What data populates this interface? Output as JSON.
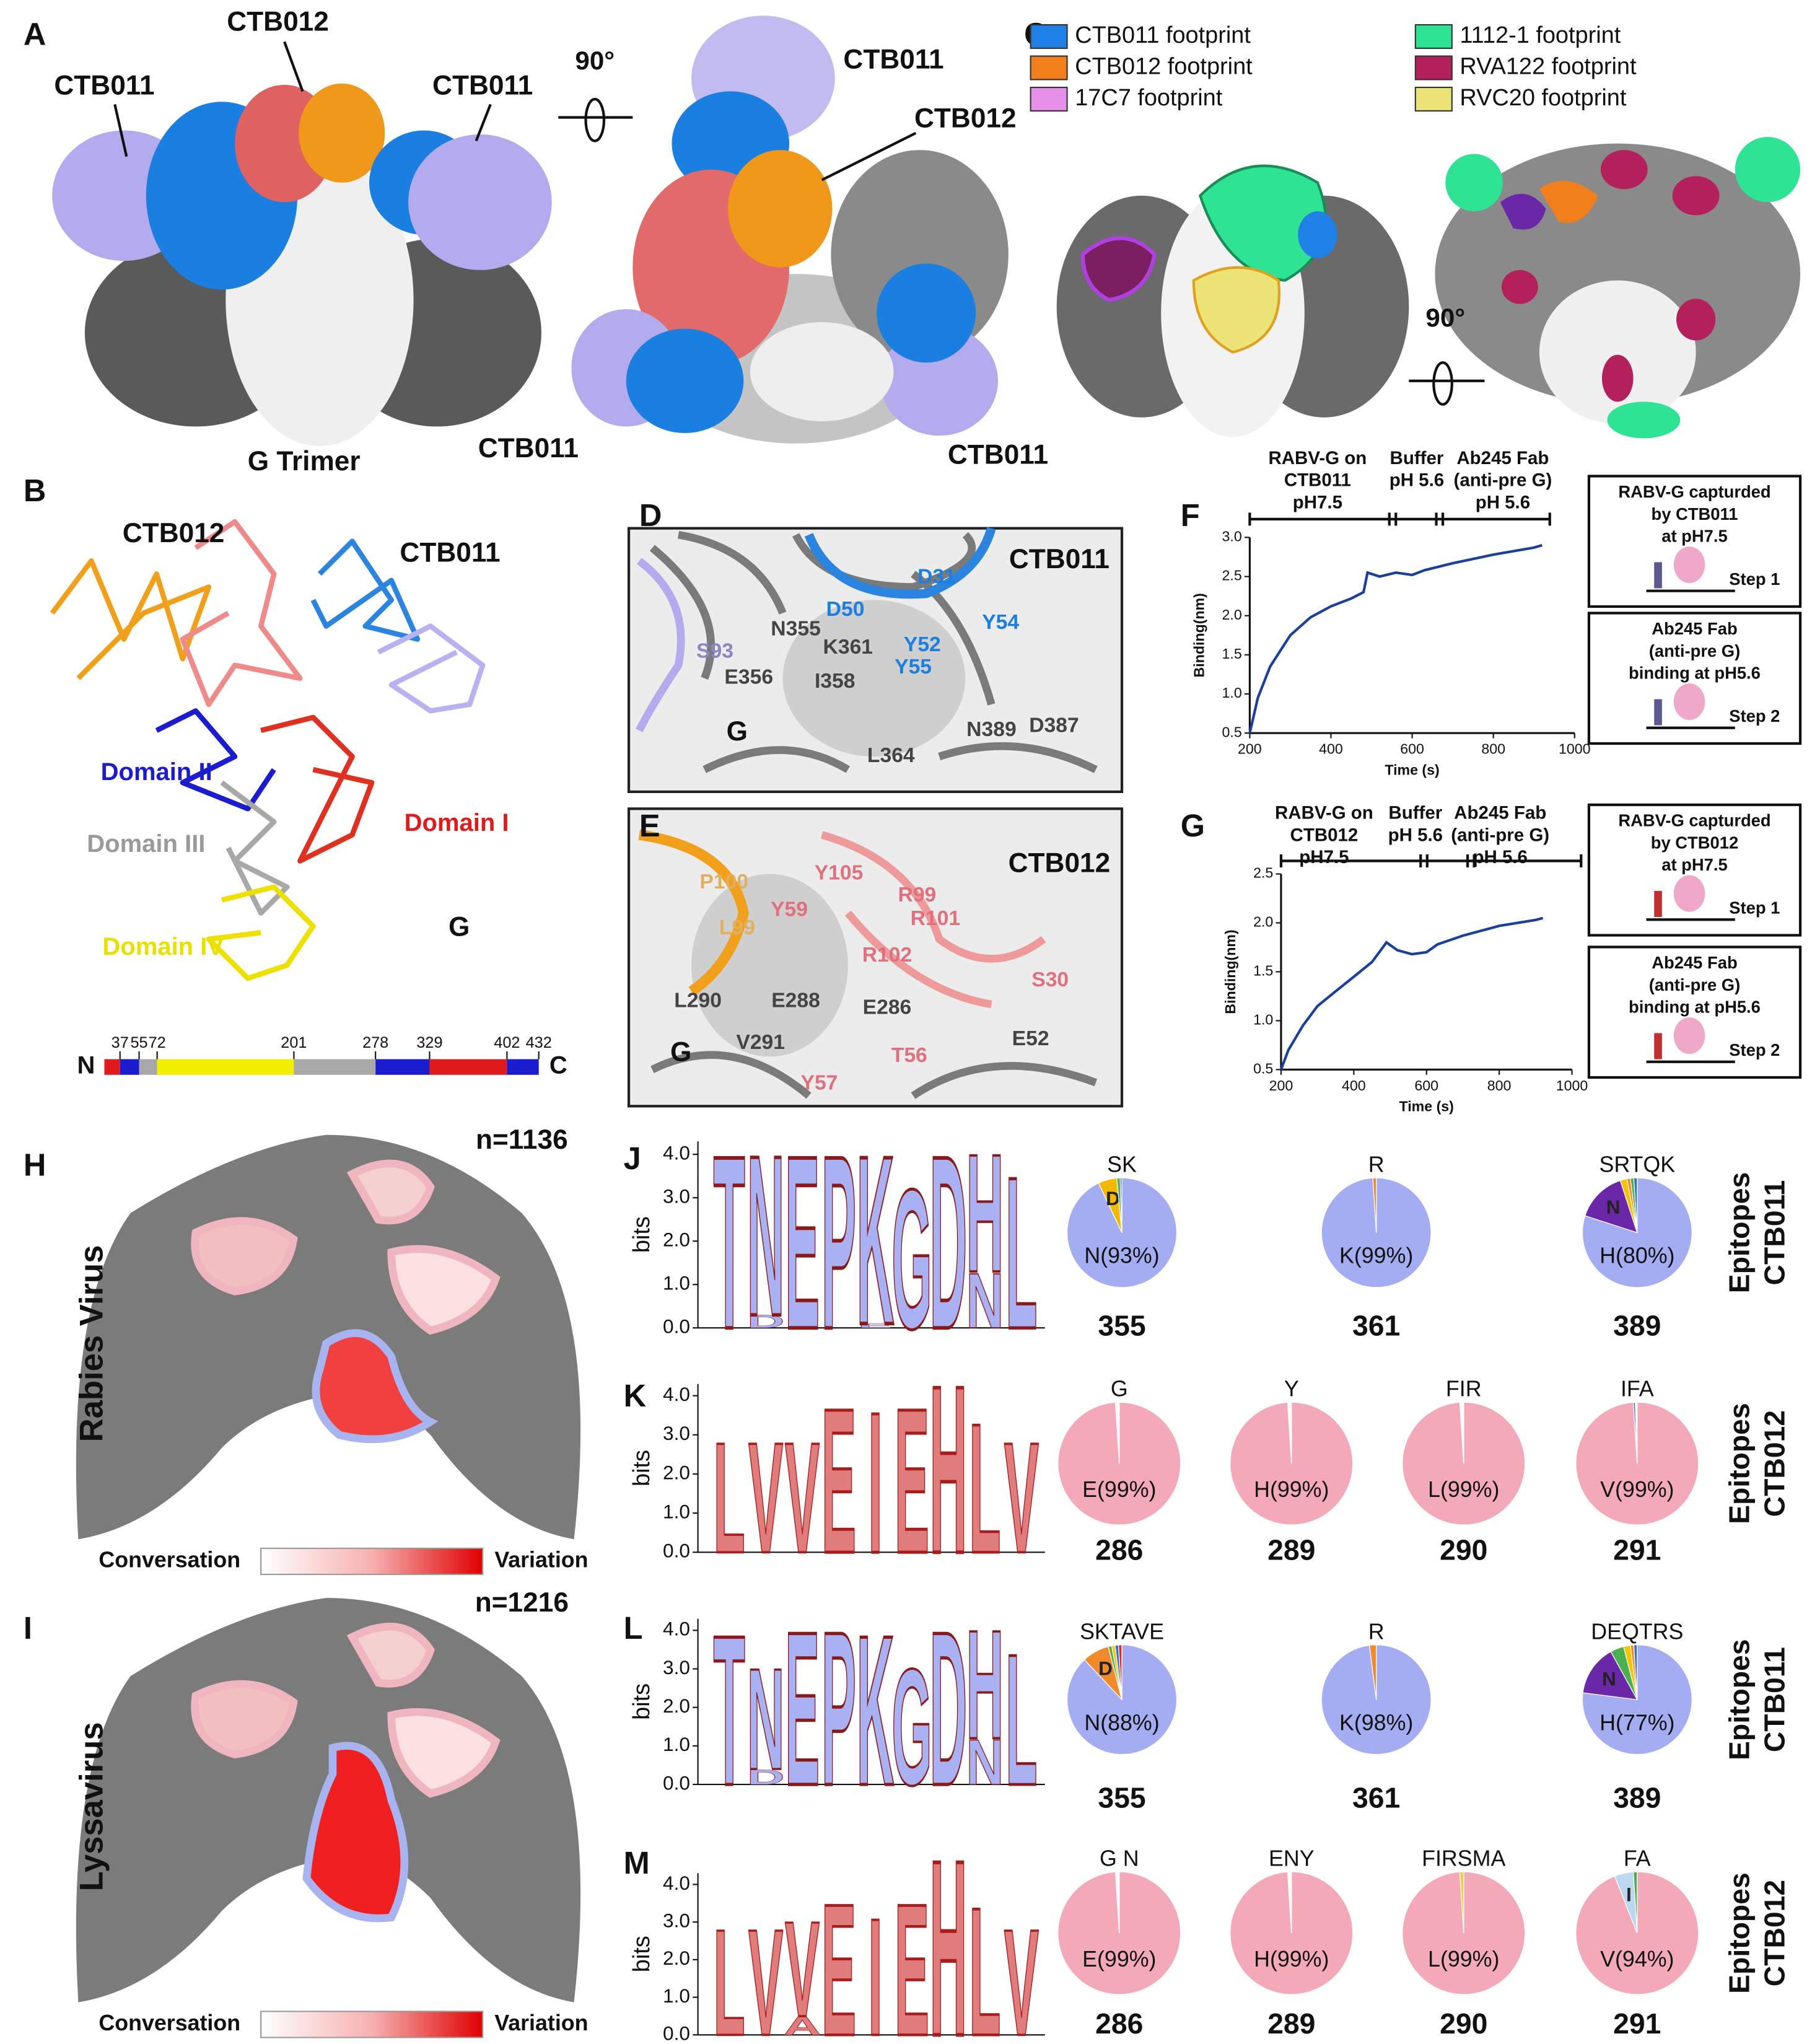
{
  "panel_labels": [
    "A",
    "B",
    "C",
    "D",
    "E",
    "F",
    "G",
    "H",
    "I",
    "J",
    "K",
    "L",
    "M"
  ],
  "panel_a": {
    "top_labels": [
      "CTB011",
      "CTB012",
      "CTB011"
    ],
    "rotation": "90°",
    "view2_labels": [
      "CTB011",
      "CTB012"
    ],
    "bottom_labels": [
      "G Trimer",
      "CTB011",
      "CTB011"
    ]
  },
  "panel_b": {
    "chains": [
      "CTB012",
      "CTB011"
    ],
    "domains": [
      "Domain II",
      "Domain III",
      "Domain I",
      "Domain IV"
    ],
    "protein": "G",
    "domain_map": {
      "start": "N",
      "end": "C",
      "boundaries": [
        37,
        55,
        72,
        201,
        278,
        329,
        402,
        432
      ],
      "colors": [
        "#e01b1b",
        "#1b1bd0",
        "#a8a8a8",
        "#f2ee00",
        "#a8a8a8",
        "#1b1bd0",
        "#e01b1b",
        "#1b1bd0"
      ]
    }
  },
  "panel_c": {
    "legend": [
      {
        "name": "CTB011 footprint",
        "color": "#1f80e6"
      },
      {
        "name": "CTB012 footprint",
        "color": "#f07f1c"
      },
      {
        "name": "17C7 footprint",
        "color": "#e690ea"
      },
      {
        "name": "1112-1 footprint",
        "color": "#2fe394"
      },
      {
        "name": "RVA122 footprint",
        "color": "#b3205c"
      },
      {
        "name": "RVC20 footprint",
        "color": "#ece477"
      }
    ],
    "rotation": "90°"
  },
  "panel_d": {
    "antibody": "CTB011",
    "protein": "G",
    "residues": [
      "D31",
      "D50",
      "Y52",
      "Y54",
      "N355",
      "K361",
      "Y55",
      "S93",
      "E356",
      "I358",
      "N389",
      "D387",
      "L364"
    ]
  },
  "panel_e": {
    "antibody": "CTB012",
    "protein": "G",
    "residues": [
      "P100",
      "Y105",
      "Y59",
      "R99",
      "L99",
      "R101",
      "R102",
      "S30",
      "L290",
      "E288",
      "E286",
      "V291",
      "T56",
      "E52",
      "Y57"
    ]
  },
  "panel_f": {
    "phases": [
      [
        "RABV-G on",
        "CTB011",
        "pH7.5"
      ],
      [
        "Buffer",
        "pH 5.6"
      ],
      [
        "Ab245 Fab",
        "(anti-pre G)",
        "pH 5.6"
      ]
    ],
    "chart": {
      "type": "line",
      "x_label": "Time (s)",
      "y_label": "Binding(nm)",
      "color": "#1b3f9c",
      "xlim": [
        200,
        1000
      ],
      "xticks": [
        200,
        400,
        600,
        800,
        1000
      ],
      "ylim": [
        0.5,
        3.0
      ],
      "yticks": [
        0.5,
        {
          "value": 1,
          "label": "1.0"
        },
        1.5,
        {
          "value": 2,
          "label": "2.0"
        },
        2.5,
        {
          "value": 3,
          "label": "3.0"
        }
      ],
      "x": [
        200,
        220,
        250,
        300,
        350,
        400,
        450,
        480,
        490,
        520,
        560,
        600,
        630,
        700,
        800,
        900,
        920
      ],
      "values": [
        0.5,
        0.95,
        1.35,
        1.75,
        1.98,
        2.12,
        2.22,
        2.3,
        2.55,
        2.5,
        2.55,
        2.52,
        2.58,
        2.67,
        2.78,
        2.87,
        2.9
      ]
    },
    "steps": [
      {
        "lines": [
          "RABV-G capturded",
          "by CTB011",
          "at pH7.5"
        ],
        "step": "Step 1"
      },
      {
        "lines": [
          "Ab245 Fab",
          "(anti-pre G)",
          "binding at pH5.6"
        ],
        "step": "Step 2"
      }
    ]
  },
  "panel_g": {
    "phases": [
      [
        "RABV-G on",
        "CTB012",
        "pH7.5"
      ],
      [
        "Buffer",
        "pH 5.6"
      ],
      [
        "Ab245 Fab",
        "(anti-pre G)",
        "pH 5.6"
      ]
    ],
    "chart": {
      "type": "line",
      "x_label": "Time (s)",
      "y_label": "Binding(nm)",
      "color": "#1b3f9c",
      "xlim": [
        200,
        1000
      ],
      "xticks": [
        200,
        400,
        600,
        800,
        1000
      ],
      "ylim": [
        0.5,
        2.5
      ],
      "yticks": [
        0.5,
        {
          "value": 1,
          "label": "1.0"
        },
        1.5,
        {
          "value": 2,
          "label": "2.0"
        },
        2.5
      ],
      "x": [
        200,
        220,
        260,
        300,
        350,
        400,
        450,
        480,
        490,
        520,
        560,
        600,
        630,
        700,
        800,
        900,
        920
      ],
      "values": [
        0.5,
        0.7,
        0.95,
        1.15,
        1.3,
        1.45,
        1.6,
        1.75,
        1.8,
        1.72,
        1.68,
        1.7,
        1.78,
        1.87,
        1.97,
        2.03,
        2.05
      ]
    },
    "steps": [
      {
        "lines": [
          "RABV-G capturded",
          "by CTB012",
          "at pH7.5"
        ],
        "step": "Step 1"
      },
      {
        "lines": [
          "Ab245 Fab",
          "(anti-pre G)",
          "binding at pH5.6"
        ],
        "step": "Step 2"
      }
    ]
  },
  "panel_h": {
    "count": "n=1136",
    "title": "Rabies Virus",
    "scale_low": "Conversation",
    "scale_high": "Variation"
  },
  "panel_i": {
    "count": "n=1216",
    "title": "Lyssavirus",
    "scale_low": "Conversation",
    "scale_high": "Variation"
  },
  "logos": [
    {
      "y_label": "bits",
      "ylim": [
        0,
        4.3
      ],
      "yticks": [
        {
          "value": 0,
          "label": "0.0"
        },
        {
          "value": 1,
          "label": "1.0"
        },
        {
          "value": 2,
          "label": "2.0"
        },
        {
          "value": 3,
          "label": "3.0"
        },
        {
          "value": 4,
          "label": "4.0"
        }
      ],
      "color": "#a9b1f2",
      "stroke": "#8a1a1a",
      "columns": [
        [
          {
            "letter": "T",
            "height": 4.1
          }
        ],
        [
          {
            "letter": "D",
            "height": 0.3
          },
          {
            "letter": "N",
            "height": 3.8
          }
        ],
        [
          {
            "letter": "E",
            "height": 4.1
          }
        ],
        [
          {
            "letter": "P",
            "height": 4.1
          }
        ],
        [
          {
            "letter": "E",
            "height": 0.1
          },
          {
            "letter": "K",
            "height": 4.0
          }
        ],
        [
          {
            "letter": "G",
            "height": 3.3
          }
        ],
        [
          {
            "letter": "D",
            "height": 4.1
          }
        ],
        [
          {
            "letter": "N",
            "height": 1.3
          },
          {
            "letter": "H",
            "height": 2.8
          }
        ],
        [
          {
            "letter": "L",
            "height": 3.6
          }
        ]
      ]
    },
    {
      "y_label": "bits",
      "ylim": [
        0,
        4.3
      ],
      "yticks": [
        {
          "value": 0,
          "label": "0.0"
        },
        {
          "value": 1,
          "label": "1.0"
        },
        {
          "value": 2,
          "label": "2.0"
        },
        {
          "value": 3,
          "label": "3.0"
        },
        {
          "value": 4,
          "label": "4.0"
        }
      ],
      "color": "#e07c7c",
      "stroke": "#a81c1c",
      "columns": [
        [
          {
            "letter": "L",
            "height": 2.9
          }
        ],
        [
          {
            "letter": "V",
            "height": 2.9
          }
        ],
        [
          {
            "letter": "V",
            "height": 2.9
          }
        ],
        [
          {
            "letter": "E",
            "height": 3.8
          }
        ],
        [
          {
            "letter": "I",
            "height": 3.7
          }
        ],
        [
          {
            "letter": "E",
            "height": 3.8
          }
        ],
        [
          {
            "letter": "H",
            "height": 4.4
          }
        ],
        [
          {
            "letter": "L",
            "height": 3.4
          }
        ],
        [
          {
            "letter": "V",
            "height": 2.9
          }
        ]
      ]
    },
    {
      "y_label": "bits",
      "ylim": [
        0,
        4.3
      ],
      "yticks": [
        {
          "value": 0,
          "label": "0.0"
        },
        {
          "value": 1,
          "label": "1.0"
        },
        {
          "value": 2,
          "label": "2.0"
        },
        {
          "value": 3,
          "label": "3.0"
        },
        {
          "value": 4,
          "label": "4.0"
        }
      ],
      "color": "#a9b1f2",
      "stroke": "#8a1a1a",
      "columns": [
        [
          {
            "letter": "T",
            "height": 4.0
          }
        ],
        [
          {
            "letter": "D",
            "height": 0.4
          },
          {
            "letter": "N",
            "height": 2.7
          }
        ],
        [
          {
            "letter": "E",
            "height": 4.1
          }
        ],
        [
          {
            "letter": "P",
            "height": 4.1
          }
        ],
        [
          {
            "letter": "K",
            "height": 4.0
          }
        ],
        [
          {
            "letter": "G",
            "height": 3.1
          }
        ],
        [
          {
            "letter": "D",
            "height": 4.1
          }
        ],
        [
          {
            "letter": "N",
            "height": 1.2
          },
          {
            "letter": "H",
            "height": 2.9
          }
        ],
        [
          {
            "letter": "L",
            "height": 3.5
          }
        ]
      ]
    },
    {
      "y_label": "bits",
      "ylim": [
        0,
        4.3
      ],
      "yticks": [
        {
          "value": 0,
          "label": "0.0"
        },
        {
          "value": 1,
          "label": "1.0"
        },
        {
          "value": 2,
          "label": "2.0"
        },
        {
          "value": 3,
          "label": "3.0"
        },
        {
          "value": 4,
          "label": "4.0"
        }
      ],
      "color": "#e07c7c",
      "stroke": "#a81c1c",
      "columns": [
        [
          {
            "letter": "L",
            "height": 2.9
          }
        ],
        [
          {
            "letter": "V",
            "height": 2.9
          }
        ],
        [
          {
            "letter": "A",
            "height": 0.5
          },
          {
            "letter": "V",
            "height": 2.6
          }
        ],
        [
          {
            "letter": "E",
            "height": 3.6
          }
        ],
        [
          {
            "letter": "I",
            "height": 3.2
          }
        ],
        [
          {
            "letter": "E",
            "height": 3.6
          }
        ],
        [
          {
            "letter": "H",
            "height": 4.8
          }
        ],
        [
          {
            "letter": "L",
            "height": 3.5
          }
        ],
        [
          {
            "letter": "V",
            "height": 2.9
          }
        ]
      ]
    }
  ],
  "pie_rows": [
    {
      "group": [
        "CTB011",
        "Epitopes"
      ],
      "pies": [
        {
          "position": "355",
          "main": {
            "label": "N(93%)",
            "value": 93,
            "color": "#a4acf2"
          },
          "others": [
            {
              "label": "D",
              "value": 5.5,
              "color": "#f5b800"
            },
            {
              "value": 1,
              "color": "#4caf50"
            },
            {
              "value": 0.5,
              "color": "#3070d0"
            }
          ],
          "outer_label": "SK"
        },
        {
          "position": "361",
          "main": {
            "label": "K(99%)",
            "value": 99,
            "color": "#a4acf2"
          },
          "others": [
            {
              "value": 1,
              "color": "#f08a2a"
            }
          ],
          "outer_label": "R"
        },
        {
          "position": "389",
          "main": {
            "label": "H(80%)",
            "value": 80,
            "color": "#a4acf2"
          },
          "others": [
            {
              "label": "N",
              "value": 15,
              "color": "#6a28a8"
            },
            {
              "value": 2,
              "color": "#f5c400"
            },
            {
              "value": 1,
              "color": "#f08a2a"
            },
            {
              "value": 1,
              "color": "#4caf50"
            },
            {
              "value": 1,
              "color": "#3070d0"
            }
          ],
          "outer_label": "SRTQK"
        }
      ]
    },
    {
      "group": [
        "CTB012",
        "Epitopes"
      ],
      "pies": [
        {
          "position": "286",
          "main": {
            "label": "E(99%)",
            "value": 99,
            "color": "#f4a9b8"
          },
          "others": [
            {
              "value": 1,
              "color": "#ffffff"
            }
          ],
          "outer_label": "G"
        },
        {
          "position": "289",
          "main": {
            "label": "H(99%)",
            "value": 99,
            "color": "#f4a9b8"
          },
          "others": [
            {
              "value": 1,
              "color": "#ffffff"
            }
          ],
          "outer_label": "Y"
        },
        {
          "position": "290",
          "main": {
            "label": "L(99%)",
            "value": 99,
            "color": "#f4a9b8"
          },
          "others": [
            {
              "value": 1,
              "color": "#ffffff"
            }
          ],
          "outer_label": "FIR"
        },
        {
          "position": "291",
          "main": {
            "label": "V(99%)",
            "value": 99,
            "color": "#f4a9b8"
          },
          "others": [
            {
              "value": 0.5,
              "color": "#3070d0"
            },
            {
              "value": 0.5,
              "color": "#ffffff"
            }
          ],
          "outer_label": "IFA"
        }
      ]
    },
    {
      "group": [
        "CTB011",
        "Epitopes"
      ],
      "pies": [
        {
          "position": "355",
          "main": {
            "label": "N(88%)",
            "value": 88,
            "color": "#a4acf2"
          },
          "others": [
            {
              "label": "D",
              "value": 8,
              "color": "#f08a2a"
            },
            {
              "value": 1,
              "color": "#4caf50"
            },
            {
              "value": 1,
              "color": "#f5c400"
            },
            {
              "value": 1,
              "color": "#3070d0"
            },
            {
              "value": 1,
              "color": "#d03030"
            }
          ],
          "outer_label": "SKTAVE"
        },
        {
          "position": "361",
          "main": {
            "label": "K(98%)",
            "value": 98,
            "color": "#a4acf2"
          },
          "others": [
            {
              "value": 2,
              "color": "#f08a2a"
            }
          ],
          "outer_label": "R"
        },
        {
          "position": "389",
          "main": {
            "label": "H(77%)",
            "value": 77,
            "color": "#a4acf2"
          },
          "others": [
            {
              "label": "N",
              "value": 15,
              "color": "#6a28a8"
            },
            {
              "value": 4,
              "color": "#4caf50"
            },
            {
              "value": 2,
              "color": "#f5c400"
            },
            {
              "value": 1,
              "color": "#f08a2a"
            },
            {
              "value": 1,
              "color": "#3070d0"
            }
          ],
          "outer_label": "DEQTRS"
        }
      ]
    },
    {
      "group": [
        "CTB012",
        "Epitopes"
      ],
      "pies": [
        {
          "position": "286",
          "main": {
            "label": "E(99%)",
            "value": 99,
            "color": "#f4a9b8"
          },
          "others": [
            {
              "value": 1,
              "color": "#ffffff"
            }
          ],
          "outer_label": "G N"
        },
        {
          "position": "289",
          "main": {
            "label": "H(99%)",
            "value": 99,
            "color": "#f4a9b8"
          },
          "others": [
            {
              "value": 1,
              "color": "#ffffff"
            }
          ],
          "outer_label": "ENY"
        },
        {
          "position": "290",
          "main": {
            "label": "L(99%)",
            "value": 99,
            "color": "#f4a9b8"
          },
          "others": [
            {
              "value": 1,
              "color": "#e8d040"
            }
          ],
          "outer_label": "FIRSMA"
        },
        {
          "position": "291",
          "main": {
            "label": "V(94%)",
            "value": 94,
            "color": "#f4a9b8"
          },
          "others": [
            {
              "label": "I",
              "value": 5,
              "color": "#bcd8f0"
            },
            {
              "value": 1,
              "color": "#4caf50"
            }
          ],
          "outer_label": "FA"
        }
      ]
    }
  ]
}
